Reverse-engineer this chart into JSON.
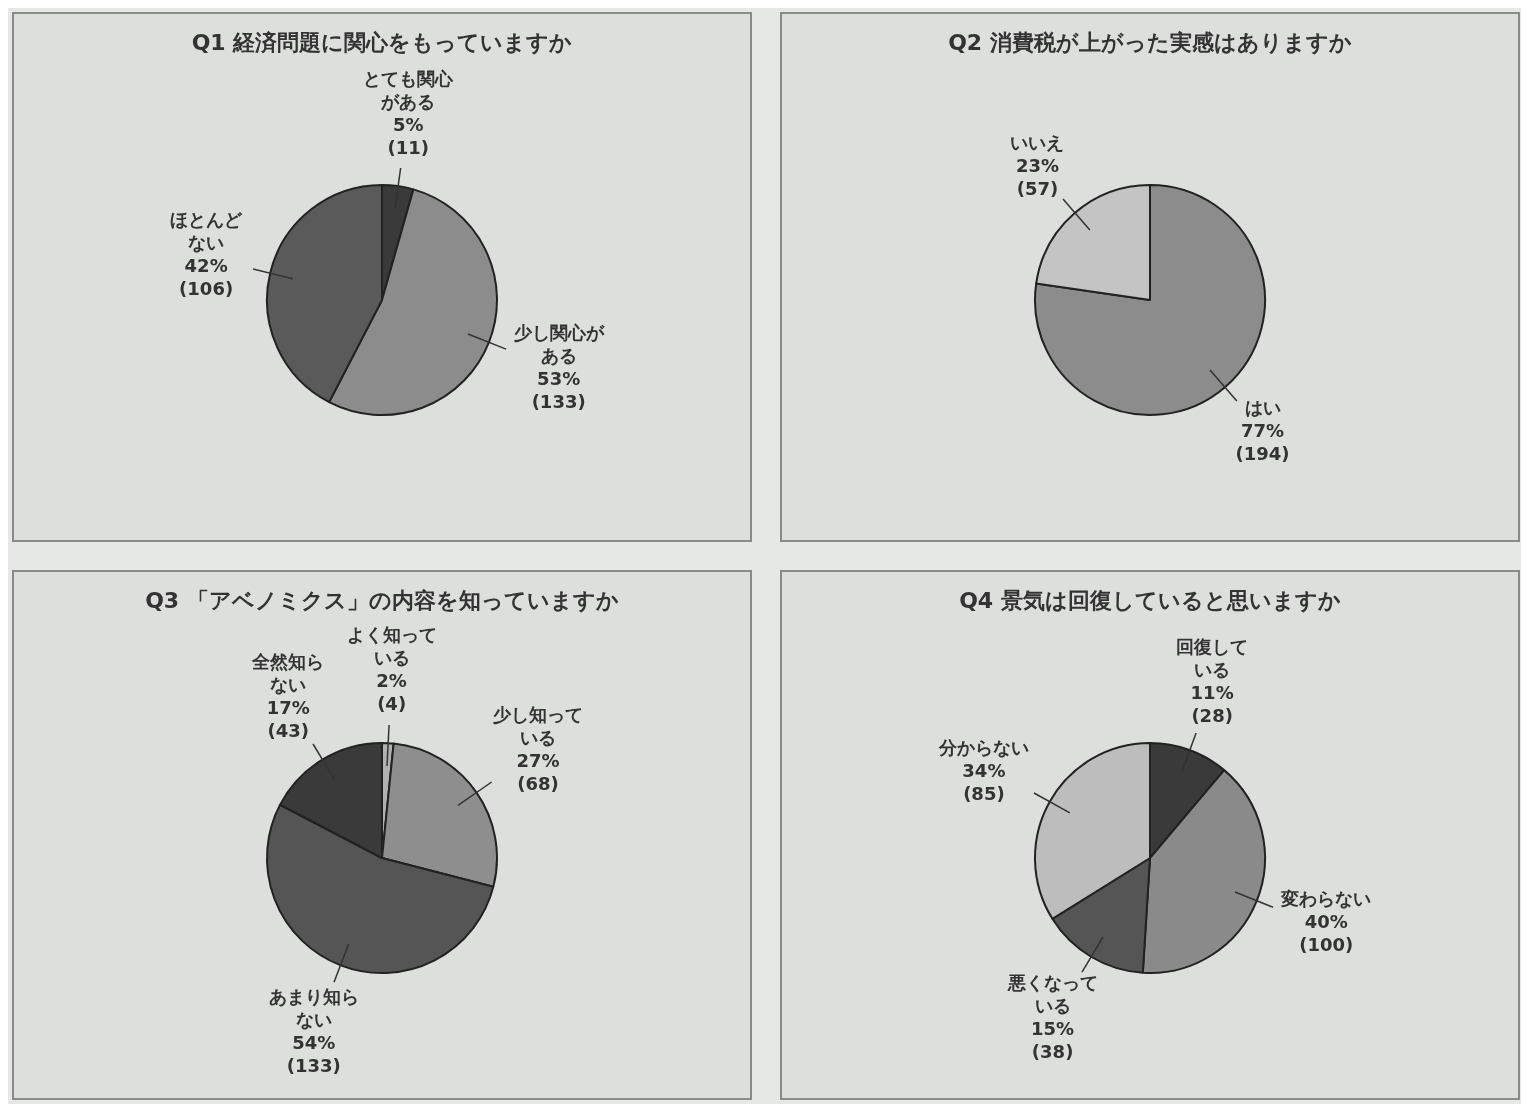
{
  "chart_data": [
    {
      "type": "pie",
      "title": "Q1  経済問題に関心をもっていますか",
      "categories": [
        "とても関心がある",
        "少し関心がある",
        "ほとんどない"
      ],
      "values": [
        11,
        133,
        106
      ],
      "value_labels": [
        "5%\n(11)",
        "53%\n(133)",
        "42%\n(106)"
      ],
      "colors": [
        "#3a3a3a",
        "#8c8c8c",
        "#5a5a5a"
      ]
    },
    {
      "type": "pie",
      "title": "Q2  消費税が上がった実感はありますか",
      "categories": [
        "はい",
        "いいえ"
      ],
      "values": [
        194,
        57
      ],
      "value_labels": [
        "77%\n(194)",
        "23%\n(57)"
      ],
      "colors": [
        "#8c8c8c",
        "#c4c4c4"
      ]
    },
    {
      "type": "pie",
      "title": "Q3  「アベノミクス」の内容を知っていますか",
      "categories": [
        "よく知っている",
        "少し知っている",
        "あまり知らない",
        "全然知らない"
      ],
      "values": [
        4,
        68,
        133,
        43
      ],
      "value_labels": [
        "2%\n(4)",
        "27%\n(68)",
        "54%\n(133)",
        "17%\n(43)"
      ],
      "colors": [
        "#b0b0b0",
        "#8e8e8e",
        "#555555",
        "#3a3a3a"
      ]
    },
    {
      "type": "pie",
      "title": "Q4  景気は回復していると思いますか",
      "categories": [
        "回復している",
        "変わらない",
        "悪くなっている",
        "分からない"
      ],
      "values": [
        28,
        100,
        38,
        85
      ],
      "value_labels": [
        "11%\n(28)",
        "40%\n(100)",
        "15%\n(38)",
        "34%\n(85)"
      ],
      "colors": [
        "#3a3a3a",
        "#8a8a8a",
        "#555555",
        "#bdbdbd"
      ]
    }
  ]
}
